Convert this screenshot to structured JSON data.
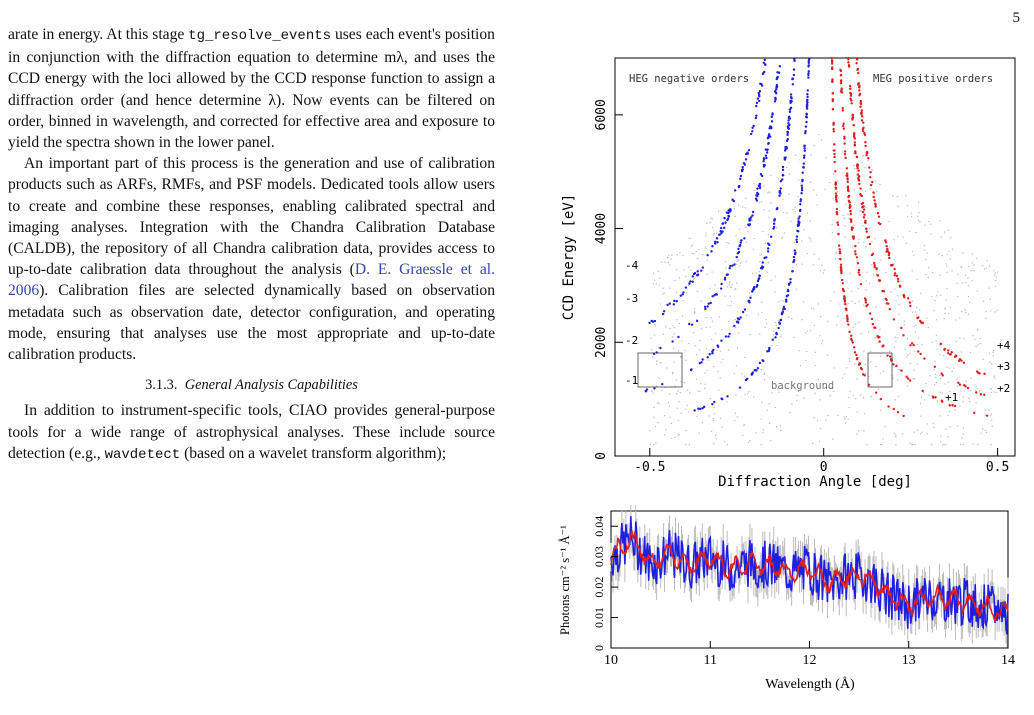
{
  "page_number": "5",
  "paragraph1": {
    "before_tool": "arate in energy. At this stage ",
    "tool": "tg_resolve_events",
    "after_tool": " uses each event's position in conjunction with the diffraction equation to determine mλ, and uses the CCD energy with the loci allowed by the CCD response function to assign a diffraction order (and hence determine λ). Now events can be filtered on order, binned in wavelength, and corrected for effective area and exposure to yield the spectra shown in the lower panel."
  },
  "paragraph2": {
    "before_cite": "An important part of this process is the generation and use of calibration products such as ARFs, RMFs, and PSF models. Dedicated tools allow users to create and combine these responses, enabling calibrated spectral and imaging analyses. Integration with the Chandra Calibration Database (CALDB), the repository of all Chandra calibration data, provides access to up-to-date calibration data throughout the analysis (",
    "cite": "D. E. Graessle et al. 2006",
    "after_cite": "). Calibration files are selected dynamically based on observation metadata such as observation date, detector configuration, and operating mode, ensuring that analyses use the most appropriate and up-to-date calibration products."
  },
  "subsection": {
    "number": "3.1.3.",
    "title": "General Analysis Capabilities"
  },
  "paragraph3": {
    "before_tool": "In addition to instrument-specific tools, CIAO provides general-purpose tools for a wide range of astrophysical analyses. These include source detection (e.g., ",
    "tool": "wavdetect",
    "after_tool": " (based on a wavelet transform algorithm);"
  },
  "chart_data": [
    {
      "type": "scatter",
      "xlabel": "Diffraction Angle [deg]",
      "ylabel": "CCD Energy [eV]",
      "xlim": [
        -0.6,
        0.55
      ],
      "ylim": [
        0,
        7000
      ],
      "xticks": [
        "-0.5",
        "0",
        "0.5"
      ],
      "yticks": [
        "0",
        "2000",
        "4000",
        "6000"
      ],
      "annotations": {
        "heg": "HEG negative orders",
        "meg": "MEG positive orders",
        "background": "background",
        "neg_orders": [
          "-1",
          "-2",
          "-3",
          "-4"
        ],
        "pos_orders": [
          "+1",
          "+2",
          "+3",
          "+4"
        ]
      },
      "series": [
        {
          "color": "#1f1fe0",
          "order": -1,
          "curve_E_over_inv_absx": 295
        },
        {
          "color": "#1f1fe0",
          "order": -2,
          "curve_E_over_inv_absx": 585
        },
        {
          "color": "#1f1fe0",
          "order": -3,
          "curve_E_over_inv_absx": 880
        },
        {
          "color": "#1f1fe0",
          "order": -4,
          "curve_E_over_inv_absx": 1170
        },
        {
          "color": "#e01f1f",
          "order": 1,
          "curve_E_over_inv_absx": 165
        },
        {
          "color": "#e01f1f",
          "order": 2,
          "curve_E_over_inv_absx": 330
        },
        {
          "color": "#e01f1f",
          "order": 3,
          "curve_E_over_inv_absx": 495
        },
        {
          "color": "#e01f1f",
          "order": 4,
          "curve_E_over_inv_absx": 660
        }
      ]
    },
    {
      "type": "line",
      "xlabel": "Wavelength (Å)",
      "ylabel": "Photons cm⁻² s⁻¹ Å⁻¹",
      "xlim": [
        10,
        14
      ],
      "ylim": [
        0,
        0.045
      ],
      "xticks": [
        "10",
        "11",
        "12",
        "13",
        "14"
      ],
      "yticks": [
        "0",
        "0.01",
        "0.02",
        "0.03",
        "0.04"
      ],
      "series": [
        {
          "color": "#1f1fe0",
          "style": "data (noisy)"
        },
        {
          "color": "#e01f1f",
          "style": "model"
        }
      ],
      "x": [
        10.0,
        10.2,
        10.4,
        10.6,
        10.8,
        11.0,
        11.2,
        11.4,
        11.6,
        11.8,
        12.0,
        12.2,
        12.4,
        12.6,
        12.8,
        13.0,
        13.2,
        13.4,
        13.6,
        13.8,
        14.0
      ],
      "y": [
        0.03,
        0.036,
        0.028,
        0.031,
        0.027,
        0.03,
        0.026,
        0.028,
        0.027,
        0.025,
        0.026,
        0.021,
        0.024,
        0.023,
        0.017,
        0.014,
        0.017,
        0.016,
        0.015,
        0.013,
        0.012
      ]
    }
  ]
}
